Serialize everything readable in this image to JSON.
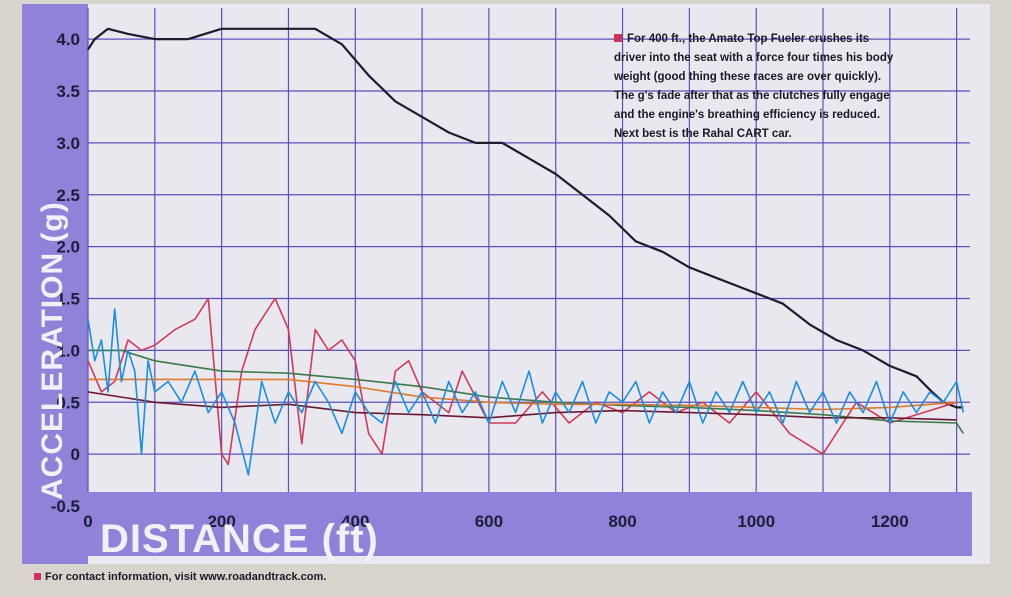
{
  "chart_data": {
    "type": "line",
    "xlabel": "DISTANCE (ft)",
    "ylabel": "ACCELERATION (g)",
    "xlim": [
      0,
      1320
    ],
    "ylim": [
      -0.5,
      4.3
    ],
    "x_ticks": [
      "0",
      "200",
      "400",
      "600",
      "800",
      "1000",
      "1200"
    ],
    "y_ticks": [
      "-0.5",
      "0",
      "0.5",
      "1.0",
      "1.5",
      "2.0",
      "2.5",
      "3.0",
      "3.5",
      "4.0"
    ],
    "grid": true,
    "annotation": "For 400 ft., the Amato Top Fueler crushes its driver into the seat with a force four times his body weight (good thing these races are over quickly). The g's fade after that as the clutches fully engage and the engine's breathing efficiency is reduced. Next best is the Rahal CART car.",
    "colors": {
      "dark": "#1c1c2e",
      "red": "#cf3a5a",
      "green": "#3f7a4a",
      "orange": "#e07a2a",
      "blue": "#1a8fe0",
      "darkred": "#6a1a30",
      "panel": "#8f82d8"
    },
    "series": [
      {
        "color": "#1c1c2e",
        "x": [
          0,
          10,
          30,
          60,
          100,
          150,
          200,
          250,
          300,
          340,
          380,
          420,
          460,
          500,
          540,
          580,
          620,
          660,
          700,
          740,
          780,
          820,
          860,
          900,
          940,
          980,
          1000,
          1040,
          1080,
          1120,
          1160,
          1200,
          1240,
          1260,
          1280,
          1300,
          1310
        ],
        "y": [
          3.9,
          4.0,
          4.1,
          4.05,
          4.0,
          4.0,
          4.1,
          4.1,
          4.1,
          4.1,
          3.95,
          3.65,
          3.4,
          3.25,
          3.1,
          3.0,
          3.0,
          2.85,
          2.7,
          2.5,
          2.3,
          2.05,
          1.95,
          1.8,
          1.7,
          1.6,
          1.55,
          1.45,
          1.25,
          1.1,
          1.0,
          0.85,
          0.75,
          0.62,
          0.5,
          0.45,
          0.45
        ]
      },
      {
        "color": "#cf3a5a",
        "x": [
          0,
          20,
          40,
          60,
          80,
          100,
          130,
          160,
          180,
          200,
          210,
          230,
          250,
          280,
          300,
          320,
          340,
          360,
          380,
          400,
          420,
          440,
          460,
          480,
          500,
          540,
          560,
          600,
          640,
          680,
          720,
          760,
          800,
          840,
          880,
          920,
          960,
          1000,
          1050,
          1100,
          1150,
          1200,
          1250,
          1300
        ],
        "y": [
          0.9,
          0.6,
          0.7,
          1.1,
          1.0,
          1.05,
          1.2,
          1.3,
          1.5,
          0.0,
          -0.1,
          0.8,
          1.2,
          1.5,
          1.2,
          0.1,
          1.2,
          1.0,
          1.1,
          0.9,
          0.2,
          0.0,
          0.8,
          0.9,
          0.6,
          0.4,
          0.8,
          0.3,
          0.3,
          0.6,
          0.3,
          0.5,
          0.4,
          0.6,
          0.4,
          0.5,
          0.3,
          0.6,
          0.2,
          0.0,
          0.5,
          0.3,
          0.4,
          0.5
        ]
      },
      {
        "color": "#3f7a4a",
        "x": [
          0,
          50,
          100,
          150,
          200,
          300,
          400,
          500,
          600,
          700,
          800,
          900,
          1000,
          1100,
          1200,
          1300,
          1310
        ],
        "y": [
          1.0,
          1.0,
          0.9,
          0.85,
          0.8,
          0.78,
          0.72,
          0.65,
          0.55,
          0.5,
          0.47,
          0.45,
          0.42,
          0.38,
          0.32,
          0.3,
          0.2
        ]
      },
      {
        "color": "#e07a2a",
        "x": [
          0,
          100,
          200,
          300,
          400,
          500,
          600,
          700,
          800,
          900,
          1000,
          1100,
          1200,
          1300
        ],
        "y": [
          0.72,
          0.72,
          0.72,
          0.72,
          0.65,
          0.55,
          0.5,
          0.48,
          0.48,
          0.47,
          0.45,
          0.43,
          0.45,
          0.5
        ]
      },
      {
        "color": "#6a1a30",
        "x": [
          0,
          100,
          200,
          300,
          400,
          500,
          600,
          700,
          800,
          900,
          1000,
          1100,
          1200,
          1300
        ],
        "y": [
          0.6,
          0.5,
          0.45,
          0.48,
          0.4,
          0.38,
          0.35,
          0.4,
          0.42,
          0.4,
          0.38,
          0.35,
          0.35,
          0.33
        ]
      },
      {
        "color": "#1a8fe0",
        "x": [
          0,
          10,
          20,
          30,
          40,
          50,
          60,
          70,
          80,
          90,
          100,
          120,
          140,
          160,
          180,
          200,
          220,
          240,
          260,
          280,
          300,
          320,
          340,
          360,
          380,
          400,
          420,
          440,
          460,
          480,
          500,
          520,
          540,
          560,
          580,
          600,
          620,
          640,
          660,
          680,
          700,
          720,
          740,
          760,
          780,
          800,
          820,
          840,
          860,
          880,
          900,
          920,
          940,
          960,
          980,
          1000,
          1020,
          1040,
          1060,
          1080,
          1100,
          1120,
          1140,
          1160,
          1180,
          1200,
          1220,
          1240,
          1260,
          1280,
          1300,
          1310
        ],
        "y": [
          1.3,
          0.9,
          1.1,
          0.6,
          1.4,
          0.7,
          1.0,
          0.8,
          0.0,
          0.9,
          0.6,
          0.7,
          0.5,
          0.8,
          0.4,
          0.6,
          0.3,
          -0.2,
          0.7,
          0.3,
          0.6,
          0.4,
          0.7,
          0.5,
          0.2,
          0.6,
          0.4,
          0.3,
          0.7,
          0.4,
          0.6,
          0.3,
          0.7,
          0.4,
          0.6,
          0.3,
          0.7,
          0.4,
          0.8,
          0.3,
          0.6,
          0.4,
          0.7,
          0.3,
          0.6,
          0.5,
          0.7,
          0.3,
          0.6,
          0.4,
          0.7,
          0.3,
          0.6,
          0.4,
          0.7,
          0.4,
          0.6,
          0.3,
          0.7,
          0.4,
          0.6,
          0.3,
          0.6,
          0.4,
          0.7,
          0.3,
          0.6,
          0.4,
          0.6,
          0.5,
          0.7,
          0.4
        ]
      }
    ]
  },
  "footer": {
    "text": "For contact information, visit www.roadandtrack.com."
  }
}
